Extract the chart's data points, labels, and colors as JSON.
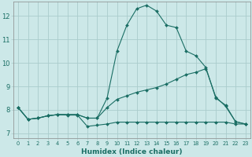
{
  "xlabel": "Humidex (Indice chaleur)",
  "ylabel": "",
  "background_color": "#cce8e8",
  "grid_color": "#aacccc",
  "line_color": "#1a6e64",
  "xlim": [
    -0.5,
    23.5
  ],
  "ylim": [
    6.8,
    12.6
  ],
  "yticks": [
    7,
    8,
    9,
    10,
    11,
    12
  ],
  "xticks": [
    0,
    1,
    2,
    3,
    4,
    5,
    6,
    7,
    8,
    9,
    10,
    11,
    12,
    13,
    14,
    15,
    16,
    17,
    18,
    19,
    20,
    21,
    22,
    23
  ],
  "xtick_labels": [
    "0",
    "1",
    "2",
    "3",
    "4",
    "5",
    "6",
    "7",
    "8",
    "9",
    "10",
    "11",
    "12",
    "13",
    "14",
    "15",
    "16",
    "17",
    "18",
    "19",
    "20",
    "21",
    "22",
    "23"
  ],
  "series": [
    {
      "x": [
        0,
        1,
        2,
        3,
        4,
        5,
        6,
        7,
        8,
        9,
        10,
        11,
        12,
        13,
        14,
        15,
        16,
        17,
        18,
        19,
        20,
        21,
        22,
        23
      ],
      "y": [
        8.1,
        7.6,
        7.65,
        7.75,
        7.8,
        7.8,
        7.8,
        7.65,
        7.65,
        8.5,
        10.5,
        11.6,
        12.3,
        12.45,
        12.2,
        11.6,
        11.5,
        10.5,
        10.3,
        9.8,
        8.5,
        8.2,
        7.5,
        7.4
      ],
      "marker": "D",
      "markersize": 2.0
    },
    {
      "x": [
        0,
        1,
        2,
        3,
        4,
        5,
        6,
        7,
        8,
        9,
        10,
        11,
        12,
        13,
        14,
        15,
        16,
        17,
        18,
        19,
        20,
        21,
        22,
        23
      ],
      "y": [
        8.1,
        7.6,
        7.65,
        7.75,
        7.8,
        7.8,
        7.8,
        7.65,
        7.65,
        8.1,
        8.45,
        8.6,
        8.75,
        8.85,
        8.95,
        9.1,
        9.3,
        9.5,
        9.6,
        9.75,
        8.55,
        8.15,
        7.5,
        7.4
      ],
      "marker": "D",
      "markersize": 2.0
    },
    {
      "x": [
        0,
        1,
        2,
        3,
        4,
        5,
        6,
        7,
        8,
        9,
        10,
        11,
        12,
        13,
        14,
        15,
        16,
        17,
        18,
        19,
        20,
        21,
        22,
        23
      ],
      "y": [
        8.1,
        7.6,
        7.65,
        7.75,
        7.8,
        7.78,
        7.78,
        7.3,
        7.35,
        7.4,
        7.48,
        7.48,
        7.48,
        7.48,
        7.48,
        7.48,
        7.48,
        7.48,
        7.48,
        7.48,
        7.48,
        7.48,
        7.4,
        7.4
      ],
      "marker": "D",
      "markersize": 2.0
    }
  ]
}
